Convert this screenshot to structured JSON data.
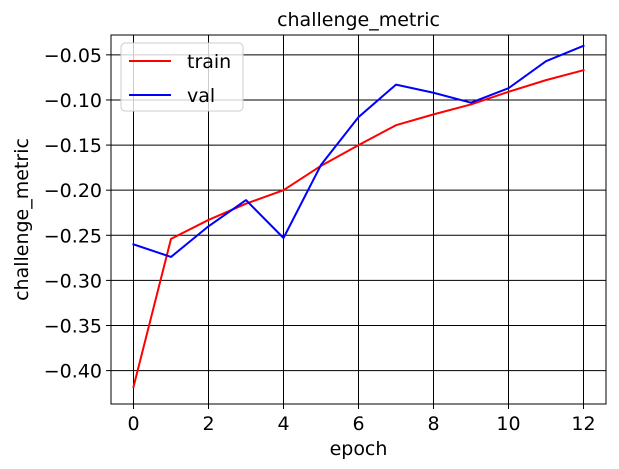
{
  "chart_data": {
    "type": "line",
    "title": "challenge_metric",
    "xlabel": "epoch",
    "ylabel": "challenge_metric",
    "xlim": [
      -0.6,
      12.6
    ],
    "ylim": [
      -0.437,
      -0.028
    ],
    "x_ticks": [
      0,
      2,
      4,
      6,
      8,
      10,
      12
    ],
    "x_tick_labels": [
      "0",
      "2",
      "4",
      "6",
      "8",
      "10",
      "12"
    ],
    "y_ticks": [
      -0.4,
      -0.35,
      -0.3,
      -0.25,
      -0.2,
      -0.15,
      -0.1,
      -0.05
    ],
    "y_tick_labels": [
      "−0.40",
      "−0.35",
      "−0.30",
      "−0.25",
      "−0.20",
      "−0.15",
      "−0.10",
      "−0.05"
    ],
    "grid": true,
    "legend_position": "top-left",
    "x": [
      0,
      1,
      2,
      3,
      4,
      5,
      6,
      7,
      8,
      9,
      10,
      11,
      12
    ],
    "series": [
      {
        "name": "train",
        "color": "#ff0000",
        "values": [
          -0.418,
          -0.254,
          -0.233,
          -0.215,
          -0.2,
          -0.173,
          -0.15,
          -0.128,
          -0.116,
          -0.105,
          -0.091,
          -0.078,
          -0.067
        ]
      },
      {
        "name": "val",
        "color": "#0000ff",
        "values": [
          -0.26,
          -0.274,
          -0.24,
          -0.211,
          -0.253,
          -0.172,
          -0.119,
          -0.083,
          -0.092,
          -0.103,
          -0.087,
          -0.057,
          -0.04
        ]
      }
    ]
  }
}
